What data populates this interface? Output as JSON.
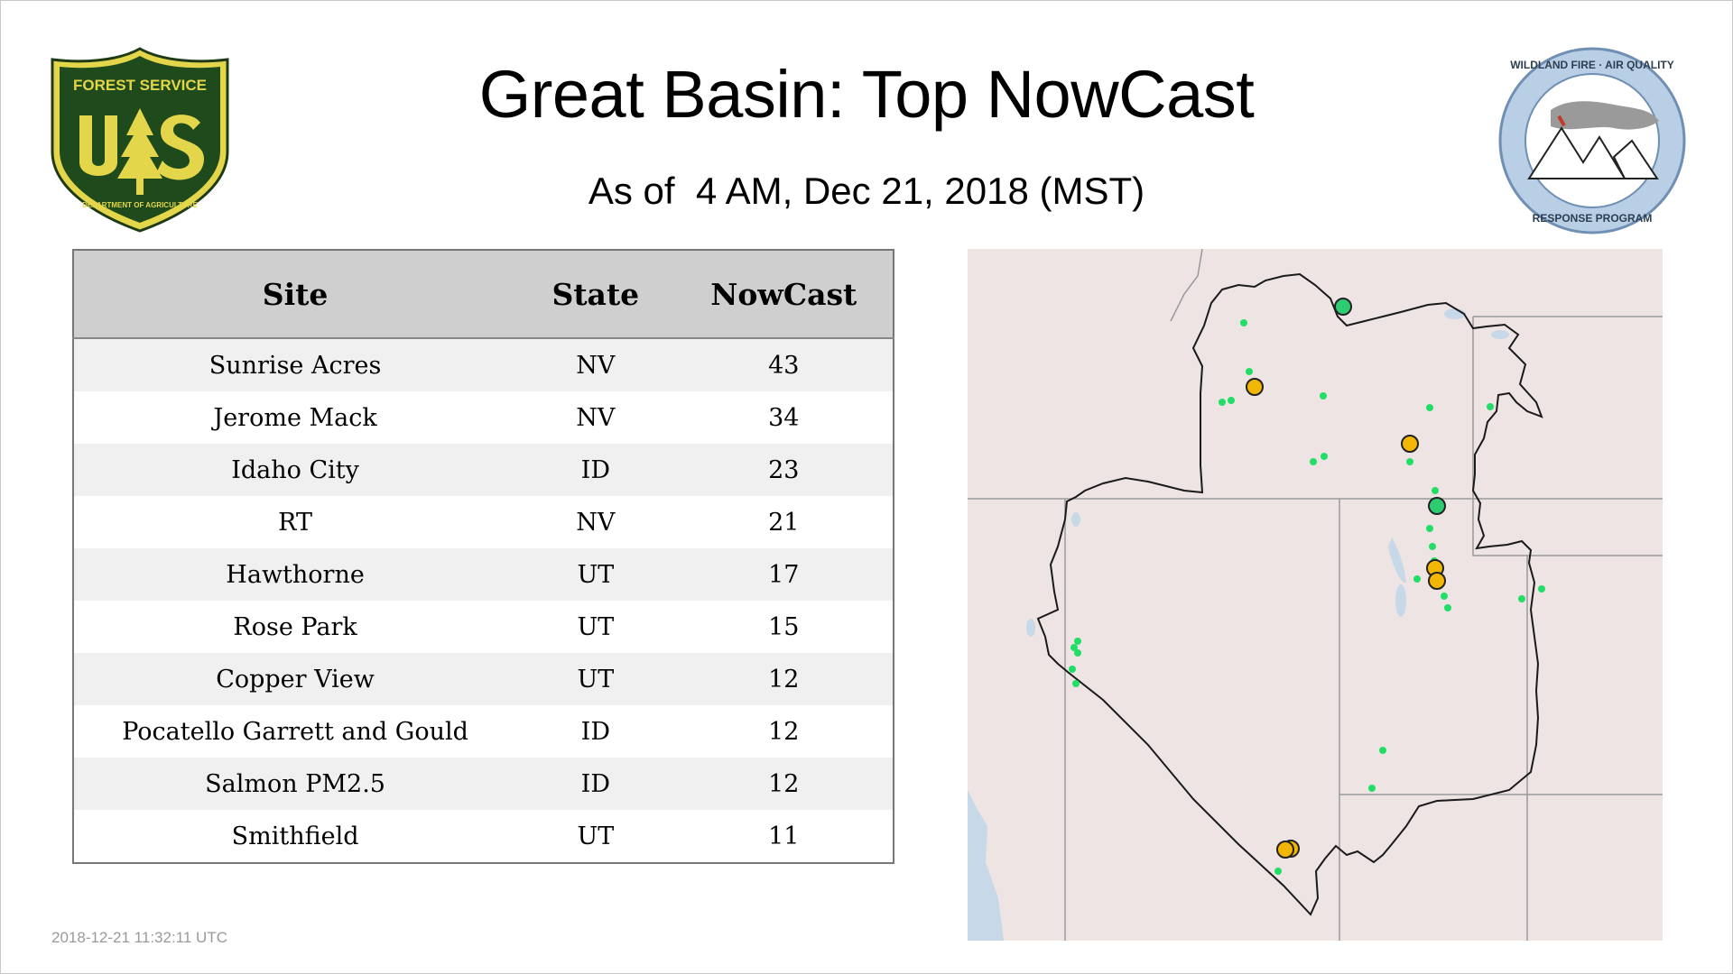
{
  "header": {
    "title": "Great Basin: Top NowCast",
    "subtitle": "As of  4 AM, Dec 21, 2018 (MST)"
  },
  "logos": {
    "forest_service": {
      "top_text": "FOREST SERVICE",
      "letters": "U S",
      "bottom_text": "DEPARTMENT OF AGRICULTURE"
    },
    "wildland_fire": {
      "top_text": "WILDLAND FIRE · AIR QUALITY",
      "bottom_text": "RESPONSE PROGRAM"
    }
  },
  "table": {
    "headers": {
      "site": "Site",
      "state": "State",
      "nowcast": "NowCast"
    },
    "rows": [
      {
        "site": "Sunrise Acres",
        "state": "NV",
        "nowcast": "43"
      },
      {
        "site": "Jerome Mack",
        "state": "NV",
        "nowcast": "34"
      },
      {
        "site": "Idaho City",
        "state": "ID",
        "nowcast": "23"
      },
      {
        "site": "RT",
        "state": "NV",
        "nowcast": "21"
      },
      {
        "site": "Hawthorne",
        "state": "UT",
        "nowcast": "17"
      },
      {
        "site": "Rose Park",
        "state": "UT",
        "nowcast": "15"
      },
      {
        "site": "Copper View",
        "state": "UT",
        "nowcast": "12"
      },
      {
        "site": "Pocatello Garrett and Gould",
        "state": "ID",
        "nowcast": "12"
      },
      {
        "site": "Salmon PM2.5",
        "state": "ID",
        "nowcast": "12"
      },
      {
        "site": "Smithfield",
        "state": "UT",
        "nowcast": "11"
      }
    ]
  },
  "timestamp": "2018-12-21 11:32:11 UTC",
  "map": {
    "region": "Great Basin",
    "marker_colors": {
      "moderate": "#f2b705",
      "good": "#2ecc71",
      "small": "#22dd66"
    },
    "colors": {
      "land": "#ede4e3",
      "water": "#c7d8e8",
      "boundary": "#1a1a1a",
      "state_line": "#9a9a9a"
    }
  }
}
